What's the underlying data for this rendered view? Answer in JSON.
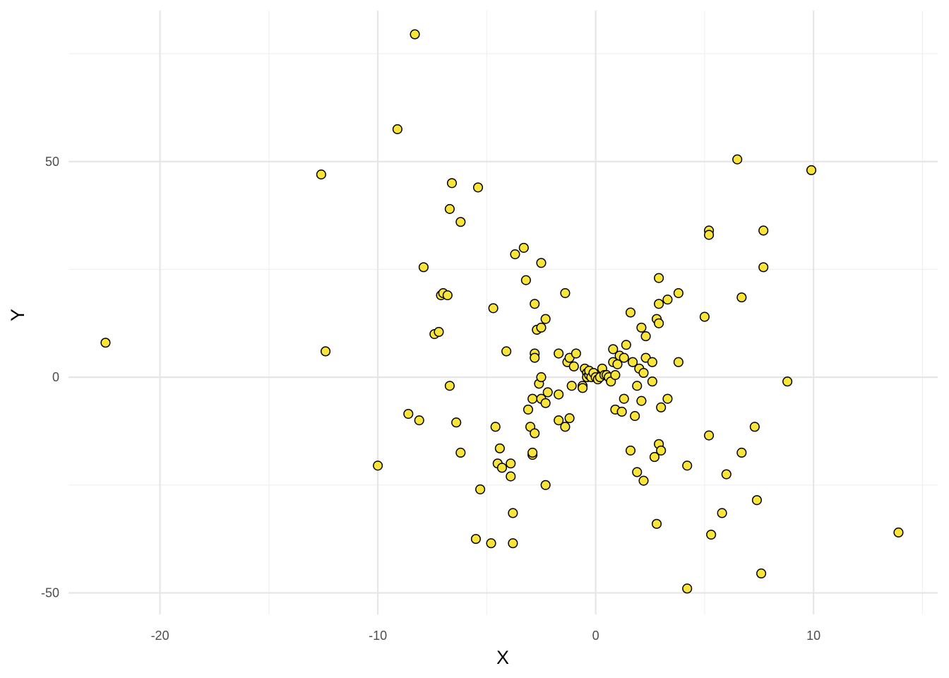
{
  "chart_data": {
    "type": "scatter",
    "title": "",
    "xlabel": "X",
    "ylabel": "Y",
    "xlim": [
      -24.2,
      15.7
    ],
    "ylim": [
      -55.0,
      85.0
    ],
    "x_ticks": [
      -20,
      -10,
      0,
      10
    ],
    "x_tick_labels": [
      "-20",
      "-10",
      "0",
      "10"
    ],
    "y_ticks": [
      -50,
      0,
      50
    ],
    "y_tick_labels": [
      "-50",
      "0",
      "50"
    ],
    "x_minor_ticks": [
      -15,
      -5,
      5,
      15
    ],
    "y_minor_ticks": [
      -25,
      25,
      75
    ],
    "grid": true,
    "legend": "none",
    "point_color": "#f9e43a",
    "point_edge_color": "#000000",
    "series": [
      {
        "points": [
          [
            -22.5,
            8.0
          ],
          [
            -12.6,
            47.0
          ],
          [
            -12.4,
            6.0
          ],
          [
            -10.0,
            -20.5
          ],
          [
            -9.1,
            57.5
          ],
          [
            -8.3,
            79.5
          ],
          [
            -8.6,
            -8.5
          ],
          [
            -8.1,
            -10.0
          ],
          [
            -7.9,
            25.5
          ],
          [
            -7.4,
            10.0
          ],
          [
            -7.2,
            10.5
          ],
          [
            -7.1,
            19.0
          ],
          [
            -7.0,
            19.5
          ],
          [
            -6.8,
            19.0
          ],
          [
            -6.7,
            -2.0
          ],
          [
            -6.7,
            39.0
          ],
          [
            -6.6,
            45.0
          ],
          [
            -6.4,
            -10.5
          ],
          [
            -6.2,
            36.0
          ],
          [
            -6.2,
            -17.5
          ],
          [
            -5.4,
            44.0
          ],
          [
            -5.3,
            -26.0
          ],
          [
            -5.5,
            -37.5
          ],
          [
            -4.8,
            -38.5
          ],
          [
            -4.7,
            16.0
          ],
          [
            -4.6,
            -11.5
          ],
          [
            -4.5,
            -20.0
          ],
          [
            -4.4,
            -16.5
          ],
          [
            -4.3,
            -21.0
          ],
          [
            -4.1,
            6.0
          ],
          [
            -3.9,
            -20.0
          ],
          [
            -3.9,
            -23.0
          ],
          [
            -3.8,
            -38.5
          ],
          [
            -3.8,
            -31.5
          ],
          [
            -3.7,
            28.5
          ],
          [
            -3.3,
            30.0
          ],
          [
            -3.2,
            22.5
          ],
          [
            -3.1,
            -7.5
          ],
          [
            -3.0,
            -11.5
          ],
          [
            -2.9,
            -18.0
          ],
          [
            -2.9,
            -17.5
          ],
          [
            -2.9,
            -5.0
          ],
          [
            -2.8,
            17.0
          ],
          [
            -2.8,
            -13.0
          ],
          [
            -2.8,
            5.5
          ],
          [
            -2.8,
            4.5
          ],
          [
            -2.7,
            11.0
          ],
          [
            -2.6,
            -1.5
          ],
          [
            -2.5,
            11.5
          ],
          [
            -2.5,
            26.5
          ],
          [
            -2.5,
            -5.0
          ],
          [
            -2.5,
            0.0
          ],
          [
            -2.3,
            -6.0
          ],
          [
            -2.3,
            -25.0
          ],
          [
            -2.3,
            13.5
          ],
          [
            -2.2,
            -3.5
          ],
          [
            -1.7,
            -4.0
          ],
          [
            -1.7,
            -10.0
          ],
          [
            -1.7,
            5.5
          ],
          [
            -1.4,
            -11.5
          ],
          [
            -1.4,
            19.5
          ],
          [
            -1.3,
            3.5
          ],
          [
            -1.2,
            4.5
          ],
          [
            -1.2,
            -9.5
          ],
          [
            -1.1,
            -2.0
          ],
          [
            -1.0,
            2.5
          ],
          [
            -0.9,
            5.5
          ],
          [
            -0.6,
            -2.0
          ],
          [
            -0.6,
            -2.5
          ],
          [
            -0.5,
            2.0
          ],
          [
            -0.4,
            1.0
          ],
          [
            -0.4,
            0.0
          ],
          [
            -0.3,
            0.5
          ],
          [
            -0.3,
            1.5
          ],
          [
            -0.2,
            0.0
          ],
          [
            -0.1,
            1.0
          ],
          [
            0.0,
            0.0
          ],
          [
            0.1,
            -0.5
          ],
          [
            0.2,
            0.0
          ],
          [
            0.3,
            2.0
          ],
          [
            0.4,
            0.5
          ],
          [
            0.5,
            0.5
          ],
          [
            0.6,
            0.0
          ],
          [
            0.7,
            -1.0
          ],
          [
            0.8,
            3.5
          ],
          [
            0.8,
            6.5
          ],
          [
            0.9,
            0.5
          ],
          [
            0.9,
            -7.5
          ],
          [
            1.0,
            3.0
          ],
          [
            1.1,
            5.0
          ],
          [
            1.2,
            -8.0
          ],
          [
            1.3,
            -5.0
          ],
          [
            1.3,
            4.5
          ],
          [
            1.4,
            7.5
          ],
          [
            1.6,
            15.0
          ],
          [
            1.6,
            -17.0
          ],
          [
            1.7,
            3.5
          ],
          [
            1.8,
            -9.0
          ],
          [
            1.9,
            -2.0
          ],
          [
            1.9,
            -22.0
          ],
          [
            2.0,
            2.0
          ],
          [
            2.1,
            11.5
          ],
          [
            2.1,
            -5.5
          ],
          [
            2.2,
            1.0
          ],
          [
            2.2,
            -24.0
          ],
          [
            2.3,
            9.5
          ],
          [
            2.3,
            4.5
          ],
          [
            2.6,
            3.5
          ],
          [
            2.6,
            -1.0
          ],
          [
            2.7,
            -18.5
          ],
          [
            2.8,
            13.5
          ],
          [
            2.8,
            -34.0
          ],
          [
            2.9,
            17.0
          ],
          [
            2.9,
            23.0
          ],
          [
            2.9,
            12.5
          ],
          [
            3.0,
            -7.0
          ],
          [
            2.9,
            -15.5
          ],
          [
            3.0,
            -17.0
          ],
          [
            3.3,
            18.0
          ],
          [
            3.3,
            -5.0
          ],
          [
            3.8,
            19.5
          ],
          [
            3.8,
            3.5
          ],
          [
            4.2,
            -20.5
          ],
          [
            4.2,
            -49.0
          ],
          [
            5.0,
            14.0
          ],
          [
            5.2,
            34.0
          ],
          [
            5.2,
            33.0
          ],
          [
            5.2,
            -13.5
          ],
          [
            5.3,
            -36.5
          ],
          [
            5.8,
            -31.5
          ],
          [
            6.0,
            -22.5
          ],
          [
            6.5,
            50.5
          ],
          [
            6.7,
            18.5
          ],
          [
            6.7,
            -17.5
          ],
          [
            7.3,
            -11.5
          ],
          [
            7.4,
            -28.5
          ],
          [
            7.6,
            -45.5
          ],
          [
            7.7,
            34.0
          ],
          [
            7.7,
            25.5
          ],
          [
            8.8,
            -1.0
          ],
          [
            9.9,
            48.0
          ],
          [
            13.9,
            -36.0
          ]
        ]
      }
    ]
  }
}
